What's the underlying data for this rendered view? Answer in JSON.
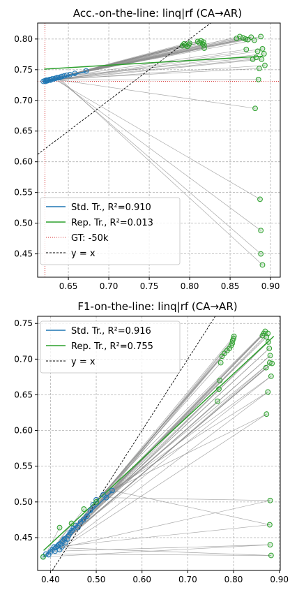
{
  "chart_data": [
    {
      "type": "scatter",
      "title": "Acc.-on-the-line: linq|rf  (CA→AR)",
      "xlim": [
        0.612,
        0.912
      ],
      "ylim": [
        0.412,
        0.826
      ],
      "xticks": [
        "0.65",
        "0.70",
        "0.75",
        "0.80",
        "0.85",
        "0.90"
      ],
      "xtick_values": [
        0.65,
        0.7,
        0.75,
        0.8,
        0.85,
        0.9
      ],
      "yticks": [
        "0.45",
        "0.50",
        "0.55",
        "0.60",
        "0.65",
        "0.70",
        "0.75",
        "0.80"
      ],
      "ytick_values": [
        0.45,
        0.5,
        0.55,
        0.6,
        0.65,
        0.7,
        0.75,
        0.8
      ],
      "grid": true,
      "legend_position": "bottom-left",
      "legend": [
        {
          "label": "Std. Tr., R²=0.910",
          "kind": "line",
          "color": "#1f77b4"
        },
        {
          "label": "Rep. Tr., R²=0.013",
          "kind": "line",
          "color": "#2ca02c"
        },
        {
          "label": "GT: -50k",
          "kind": "dotted",
          "color": "#d62728"
        },
        {
          "label": "y = x",
          "kind": "dashed",
          "color": "#000000"
        }
      ],
      "gt_x": 0.621,
      "gt_y": 0.731,
      "fit_std": {
        "x": [
          0.619,
          0.672
        ],
        "y": [
          0.73,
          0.747
        ]
      },
      "fit_rep": {
        "x": [
          0.62,
          0.89
        ],
        "y": [
          0.751,
          0.772
        ]
      },
      "series": [
        {
          "name": "Std. Tr.",
          "color": "#1f77b4",
          "points": [
            [
              0.619,
              0.731
            ],
            [
              0.621,
              0.732
            ],
            [
              0.622,
              0.731
            ],
            [
              0.623,
              0.733
            ],
            [
              0.624,
              0.732
            ],
            [
              0.625,
              0.733
            ],
            [
              0.627,
              0.734
            ],
            [
              0.628,
              0.733
            ],
            [
              0.63,
              0.735
            ],
            [
              0.632,
              0.735
            ],
            [
              0.634,
              0.736
            ],
            [
              0.636,
              0.737
            ],
            [
              0.638,
              0.737
            ],
            [
              0.64,
              0.738
            ],
            [
              0.642,
              0.739
            ],
            [
              0.645,
              0.74
            ],
            [
              0.648,
              0.741
            ],
            [
              0.652,
              0.742
            ],
            [
              0.658,
              0.744
            ],
            [
              0.672,
              0.748
            ]
          ]
        },
        {
          "name": "Rep. Tr.",
          "color": "#2ca02c",
          "points": [
            [
              0.791,
              0.789
            ],
            [
              0.793,
              0.792
            ],
            [
              0.795,
              0.79
            ],
            [
              0.797,
              0.788
            ],
            [
              0.799,
              0.791
            ],
            [
              0.8,
              0.793
            ],
            [
              0.81,
              0.796
            ],
            [
              0.812,
              0.794
            ],
            [
              0.814,
              0.797
            ],
            [
              0.816,
              0.792
            ],
            [
              0.817,
              0.795
            ],
            [
              0.818,
              0.79
            ],
            [
              0.818,
              0.785
            ],
            [
              0.858,
              0.801
            ],
            [
              0.862,
              0.804
            ],
            [
              0.866,
              0.802
            ],
            [
              0.869,
              0.8
            ],
            [
              0.872,
              0.799
            ],
            [
              0.876,
              0.803
            ],
            [
              0.88,
              0.798
            ],
            [
              0.888,
              0.804
            ],
            [
              0.89,
              0.784
            ],
            [
              0.892,
              0.776
            ],
            [
              0.884,
              0.78
            ],
            [
              0.878,
              0.767
            ],
            [
              0.889,
              0.767
            ],
            [
              0.893,
              0.757
            ],
            [
              0.886,
              0.752
            ],
            [
              0.885,
              0.734
            ],
            [
              0.881,
              0.687
            ],
            [
              0.887,
              0.539
            ],
            [
              0.888,
              0.488
            ],
            [
              0.888,
              0.45
            ],
            [
              0.89,
              0.432
            ],
            [
              0.87,
              0.783
            ],
            [
              0.882,
              0.77
            ]
          ]
        }
      ]
    },
    {
      "type": "scatter",
      "title": "F1-on-the-line: linq|rf  (CA→AR)",
      "xlim": [
        0.372,
        0.902
      ],
      "ylim": [
        0.404,
        0.76
      ],
      "xticks": [
        "0.40",
        "0.50",
        "0.60",
        "0.70",
        "0.80",
        "0.90"
      ],
      "xtick_values": [
        0.4,
        0.5,
        0.6,
        0.7,
        0.8,
        0.9
      ],
      "yticks": [
        "0.45",
        "0.50",
        "0.55",
        "0.60",
        "0.65",
        "0.70",
        "0.75"
      ],
      "ytick_values": [
        0.45,
        0.5,
        0.55,
        0.6,
        0.65,
        0.7,
        0.75
      ],
      "grid": true,
      "legend_position": "top-left",
      "legend": [
        {
          "label": "Std. Tr., R²=0.916",
          "kind": "line",
          "color": "#1f77b4"
        },
        {
          "label": "Rep. Tr., R²=0.755",
          "kind": "line",
          "color": "#2ca02c"
        },
        {
          "label": "y = x",
          "kind": "dashed",
          "color": "#000000"
        }
      ],
      "fit_std": {
        "x": [
          0.385,
          0.535
        ],
        "y": [
          0.423,
          0.515
        ]
      },
      "fit_rep": {
        "x": [
          0.385,
          0.888
        ],
        "y": [
          0.432,
          0.732
        ]
      },
      "series": [
        {
          "name": "Std. Tr.",
          "color": "#1f77b4",
          "points": [
            [
              0.384,
              0.423
            ],
            [
              0.39,
              0.427
            ],
            [
              0.396,
              0.426
            ],
            [
              0.4,
              0.43
            ],
            [
              0.404,
              0.433
            ],
            [
              0.408,
              0.437
            ],
            [
              0.41,
              0.431
            ],
            [
              0.412,
              0.436
            ],
            [
              0.415,
              0.438
            ],
            [
              0.418,
              0.44
            ],
            [
              0.42,
              0.433
            ],
            [
              0.422,
              0.441
            ],
            [
              0.425,
              0.437
            ],
            [
              0.427,
              0.445
            ],
            [
              0.43,
              0.448
            ],
            [
              0.433,
              0.443
            ],
            [
              0.437,
              0.448
            ],
            [
              0.44,
              0.453
            ],
            [
              0.443,
              0.457
            ],
            [
              0.447,
              0.46
            ],
            [
              0.45,
              0.463
            ],
            [
              0.455,
              0.467
            ],
            [
              0.46,
              0.464
            ],
            [
              0.466,
              0.472
            ],
            [
              0.472,
              0.475
            ],
            [
              0.48,
              0.48
            ],
            [
              0.487,
              0.488
            ],
            [
              0.493,
              0.496
            ],
            [
              0.5,
              0.503
            ],
            [
              0.515,
              0.51
            ],
            [
              0.522,
              0.506
            ],
            [
              0.535,
              0.516
            ]
          ]
        },
        {
          "name": "Rep. Tr.",
          "color": "#2ca02c",
          "points": [
            [
              0.384,
              0.423
            ],
            [
              0.42,
              0.464
            ],
            [
              0.446,
              0.47
            ],
            [
              0.473,
              0.49
            ],
            [
              0.5,
              0.5
            ],
            [
              0.765,
              0.641
            ],
            [
              0.768,
              0.658
            ],
            [
              0.77,
              0.67
            ],
            [
              0.772,
              0.695
            ],
            [
              0.775,
              0.704
            ],
            [
              0.78,
              0.708
            ],
            [
              0.786,
              0.712
            ],
            [
              0.791,
              0.715
            ],
            [
              0.795,
              0.719
            ],
            [
              0.797,
              0.722
            ],
            [
              0.798,
              0.726
            ],
            [
              0.8,
              0.729
            ],
            [
              0.801,
              0.732
            ],
            [
              0.863,
              0.733
            ],
            [
              0.866,
              0.736
            ],
            [
              0.869,
              0.739
            ],
            [
              0.872,
              0.731
            ],
            [
              0.875,
              0.736
            ],
            [
              0.876,
              0.724
            ],
            [
              0.878,
              0.715
            ],
            [
              0.88,
              0.705
            ],
            [
              0.879,
              0.695
            ],
            [
              0.882,
              0.676
            ],
            [
              0.875,
              0.654
            ],
            [
              0.872,
              0.623
            ],
            [
              0.88,
              0.502
            ],
            [
              0.879,
              0.468
            ],
            [
              0.88,
              0.44
            ],
            [
              0.882,
              0.425
            ],
            [
              0.871,
              0.688
            ],
            [
              0.884,
              0.694
            ]
          ]
        }
      ]
    }
  ]
}
